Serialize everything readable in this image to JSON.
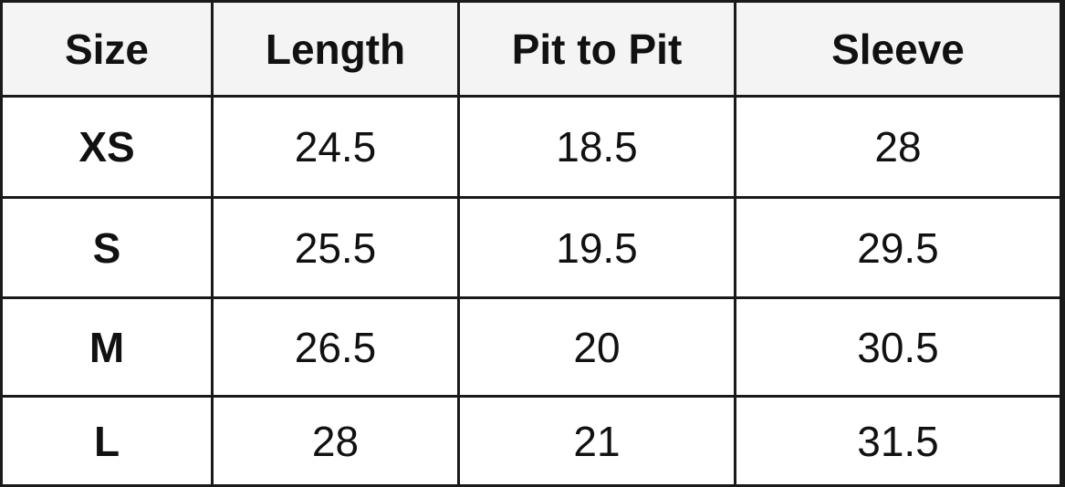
{
  "table": {
    "header": [
      "Size",
      "Length",
      "Pit to Pit",
      "Sleeve"
    ],
    "rows": [
      [
        "XS",
        24.5,
        18.5,
        28
      ],
      [
        "S",
        25.5,
        19.5,
        29.5
      ],
      [
        "M",
        26.5,
        20,
        30.5
      ],
      [
        "L",
        28,
        21,
        31.5
      ]
    ]
  }
}
